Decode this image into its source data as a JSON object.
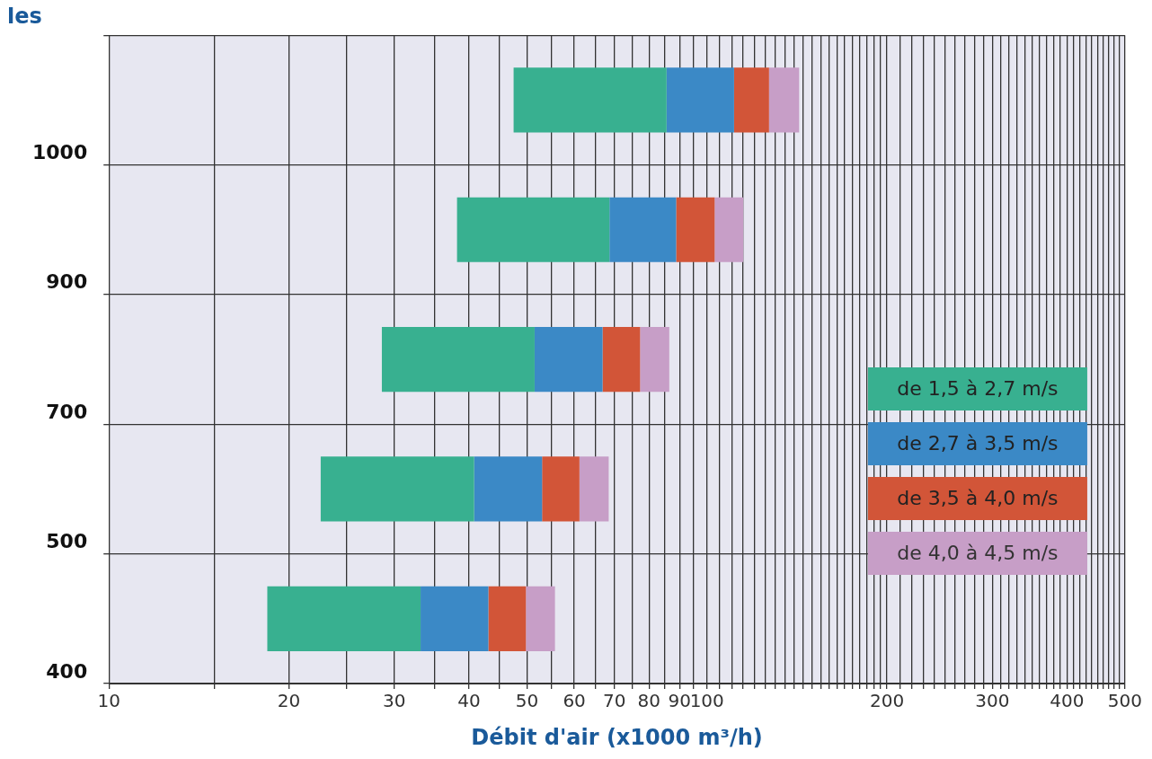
{
  "chart_data": {
    "type": "bar",
    "orientation": "horizontal",
    "ylabel": "les",
    "xlabel": "Débit d'air (x1000 m³/h)",
    "categories": [
      "1000",
      "900",
      "700",
      "500",
      "400"
    ],
    "series": [
      {
        "name": "de 1,5 à 2,7 m/s",
        "color": "#38b090",
        "base": [
          47.5,
          38.2,
          28.6,
          22.6,
          18.4
        ],
        "values": [
          38.1,
          30.5,
          22.9,
          18.2,
          14.8
        ]
      },
      {
        "name": "de 2,7 à 3,5 m/s",
        "color": "#3b89c6",
        "base": [
          85.6,
          68.7,
          51.5,
          40.8,
          33.2
        ],
        "values": [
          25.4,
          20.1,
          15.4,
          12.2,
          9.9
        ]
      },
      {
        "name": "de 3,5 à 4,0 m/s",
        "color": "#d25538",
        "base": [
          111,
          88.8,
          66.9,
          53,
          43.1
        ],
        "values": [
          16,
          14.2,
          10.4,
          8.2,
          6.7
        ]
      },
      {
        "name": "de 4,0 à 4,5 m/s",
        "color": "#c79ec7",
        "base": [
          127,
          103,
          77.3,
          61.2,
          49.8
        ],
        "values": [
          15.6,
          12,
          9.2,
          7.3,
          5.9
        ]
      }
    ],
    "log": "x",
    "xlim": [
      10,
      500
    ],
    "xticks": [
      10,
      {
        "value": 15,
        "label": null
      },
      20,
      {
        "value": 25,
        "label": null
      },
      30,
      {
        "value": 35,
        "label": null
      },
      40,
      {
        "value": 45,
        "label": null
      },
      50,
      {
        "value": 55,
        "label": null
      },
      60,
      {
        "value": 65,
        "label": null
      },
      70,
      {
        "value": 75,
        "label": null
      },
      80,
      {
        "value": 85,
        "label": null
      },
      90,
      {
        "value": 95,
        "label": null
      },
      100,
      {
        "value": 105,
        "label": null
      },
      {
        "value": 110,
        "label": null
      },
      {
        "value": 115,
        "label": null
      },
      {
        "value": 120,
        "label": null
      },
      {
        "value": 125,
        "label": null
      },
      {
        "value": 130,
        "label": null
      },
      {
        "value": 135,
        "label": null
      },
      {
        "value": 140,
        "label": null
      },
      {
        "value": 145,
        "label": null
      },
      {
        "value": 150,
        "label": null
      },
      {
        "value": 155,
        "label": null
      },
      {
        "value": 160,
        "label": null
      },
      {
        "value": 165,
        "label": null
      },
      {
        "value": 170,
        "label": null
      },
      {
        "value": 175,
        "label": null
      },
      {
        "value": 180,
        "label": null
      },
      {
        "value": 185,
        "label": null
      },
      {
        "value": 190,
        "label": null
      },
      {
        "value": 195,
        "label": null
      },
      200,
      {
        "value": 210,
        "label": null
      },
      {
        "value": 220,
        "label": null
      },
      {
        "value": 230,
        "label": null
      },
      {
        "value": 240,
        "label": null
      },
      {
        "value": 250,
        "label": null
      },
      {
        "value": 260,
        "label": null
      },
      {
        "value": 270,
        "label": null
      },
      {
        "value": 280,
        "label": null
      },
      {
        "value": 290,
        "label": null
      },
      300,
      {
        "value": 310,
        "label": null
      },
      {
        "value": 320,
        "label": null
      },
      {
        "value": 330,
        "label": null
      },
      {
        "value": 340,
        "label": null
      },
      {
        "value": 350,
        "label": null
      },
      {
        "value": 360,
        "label": null
      },
      {
        "value": 370,
        "label": null
      },
      {
        "value": 380,
        "label": null
      },
      {
        "value": 390,
        "label": null
      },
      400,
      {
        "value": 410,
        "label": null
      },
      {
        "value": 420,
        "label": null
      },
      {
        "value": 430,
        "label": null
      },
      {
        "value": 440,
        "label": null
      },
      {
        "value": 450,
        "label": null
      },
      {
        "value": 460,
        "label": null
      },
      {
        "value": 470,
        "label": null
      },
      {
        "value": 480,
        "label": null
      },
      {
        "value": 490,
        "label": null
      },
      500
    ],
    "grid": true,
    "legend": "bottom right"
  }
}
